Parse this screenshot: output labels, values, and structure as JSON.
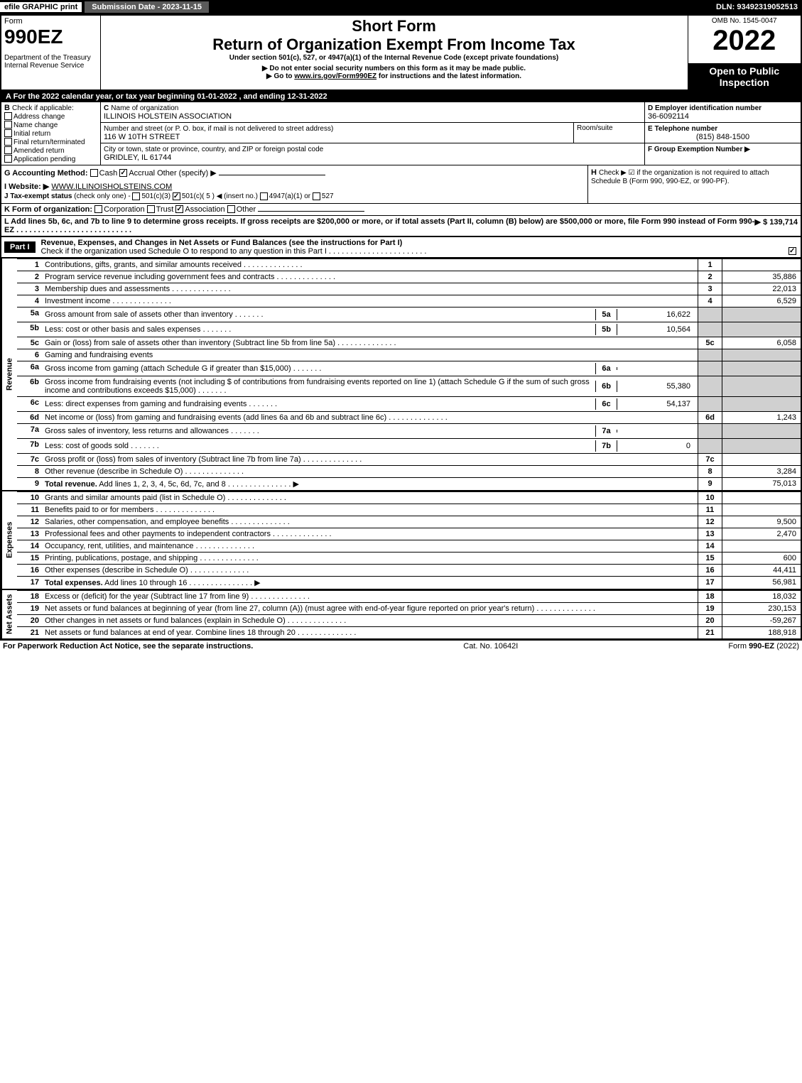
{
  "topbar": {
    "efile": "efile GRAPHIC print",
    "submission": "Submission Date - 2023-11-15",
    "dln": "DLN: 93492319052513"
  },
  "header": {
    "form_label": "Form",
    "form_number": "990EZ",
    "dept1": "Department of the Treasury",
    "dept2": "Internal Revenue Service",
    "short_form": "Short Form",
    "title": "Return of Organization Exempt From Income Tax",
    "subtitle": "Under section 501(c), 527, or 4947(a)(1) of the Internal Revenue Code (except private foundations)",
    "note1": "▶ Do not enter social security numbers on this form as it may be made public.",
    "note2": "▶ Go to www.irs.gov/Form990EZ for instructions and the latest information.",
    "omb": "OMB No. 1545-0047",
    "year": "2022",
    "open_to": "Open to Public Inspection"
  },
  "sectionA": {
    "label": "A  For the 2022 calendar year, or tax year beginning 01-01-2022 , and ending 12-31-2022"
  },
  "sectionB": {
    "label": "B",
    "check_if": "Check if applicable:",
    "options": [
      "Address change",
      "Name change",
      "Initial return",
      "Final return/terminated",
      "Amended return",
      "Application pending"
    ]
  },
  "sectionC": {
    "label": "C",
    "name_label": "Name of organization",
    "name": "ILLINOIS HOLSTEIN ASSOCIATION",
    "addr_label": "Number and street (or P. O. box, if mail is not delivered to street address)",
    "addr": "116 W 10TH STREET",
    "room": "Room/suite",
    "city_label": "City or town, state or province, country, and ZIP or foreign postal code",
    "city": "GRIDLEY, IL  61744"
  },
  "sectionD": {
    "label": "D Employer identification number",
    "ein": "36-6092114"
  },
  "sectionE": {
    "label": "E Telephone number",
    "phone": "(815) 848-1500"
  },
  "sectionF": {
    "label": "F Group Exemption Number  ▶"
  },
  "sectionG": {
    "label": "G Accounting Method:",
    "cash": "Cash",
    "accrual": "Accrual",
    "other": "Other (specify) ▶"
  },
  "sectionH": {
    "label": "H",
    "text": "Check ▶ ☑ if the organization is not required to attach Schedule B (Form 990, 990-EZ, or 990-PF)."
  },
  "sectionI": {
    "label": "I Website: ▶",
    "website": "WWW.ILLINOISHOLSTEINS.COM"
  },
  "sectionJ": {
    "label": "J Tax-exempt status",
    "note": "(check only one) -",
    "opt1": "501(c)(3)",
    "opt2": "501(c)( 5 ) ◀ (insert no.)",
    "opt3": "4947(a)(1) or",
    "opt4": "527"
  },
  "sectionK": {
    "label": "K Form of organization:",
    "corp": "Corporation",
    "trust": "Trust",
    "assoc": "Association",
    "other": "Other"
  },
  "sectionL": {
    "text": "L Add lines 5b, 6c, and 7b to line 9 to determine gross receipts. If gross receipts are $200,000 or more, or if total assets (Part II, column (B) below) are $500,000 or more, file Form 990 instead of Form 990-EZ",
    "value": "▶ $ 139,714"
  },
  "part1": {
    "label": "Part I",
    "title": "Revenue, Expenses, and Changes in Net Assets or Fund Balances (see the instructions for Part I)",
    "check": "Check if the organization used Schedule O to respond to any question in this Part I"
  },
  "revenue": {
    "section_label": "Revenue",
    "lines": {
      "1": {
        "desc": "Contributions, gifts, grants, and similar amounts received",
        "num": "1",
        "val": ""
      },
      "2": {
        "desc": "Program service revenue including government fees and contracts",
        "num": "2",
        "val": "35,886"
      },
      "3": {
        "desc": "Membership dues and assessments",
        "num": "3",
        "val": "22,013"
      },
      "4": {
        "desc": "Investment income",
        "num": "4",
        "val": "6,529"
      },
      "5a": {
        "desc": "Gross amount from sale of assets other than inventory",
        "sub": "5a",
        "subval": "16,622"
      },
      "5b": {
        "desc": "Less: cost or other basis and sales expenses",
        "sub": "5b",
        "subval": "10,564"
      },
      "5c": {
        "desc": "Gain or (loss) from sale of assets other than inventory (Subtract line 5b from line 5a)",
        "num": "5c",
        "val": "6,058"
      },
      "6": {
        "desc": "Gaming and fundraising events"
      },
      "6a": {
        "desc": "Gross income from gaming (attach Schedule G if greater than $15,000)",
        "sub": "6a",
        "subval": ""
      },
      "6b": {
        "desc": "Gross income from fundraising events (not including $                of contributions from fundraising events reported on line 1) (attach Schedule G if the sum of such gross income and contributions exceeds $15,000)",
        "sub": "6b",
        "subval": "55,380"
      },
      "6c": {
        "desc": "Less: direct expenses from gaming and fundraising events",
        "sub": "6c",
        "subval": "54,137"
      },
      "6d": {
        "desc": "Net income or (loss) from gaming and fundraising events (add lines 6a and 6b and subtract line 6c)",
        "num": "6d",
        "val": "1,243"
      },
      "7a": {
        "desc": "Gross sales of inventory, less returns and allowances",
        "sub": "7a",
        "subval": ""
      },
      "7b": {
        "desc": "Less: cost of goods sold",
        "sub": "7b",
        "subval": "0"
      },
      "7c": {
        "desc": "Gross profit or (loss) from sales of inventory (Subtract line 7b from line 7a)",
        "num": "7c",
        "val": ""
      },
      "8": {
        "desc": "Other revenue (describe in Schedule O)",
        "num": "8",
        "val": "3,284"
      },
      "9": {
        "desc": "Total revenue. Add lines 1, 2, 3, 4, 5c, 6d, 7c, and 8",
        "num": "9",
        "val": "75,013",
        "arrow": "▶"
      }
    }
  },
  "expenses": {
    "section_label": "Expenses",
    "lines": {
      "10": {
        "desc": "Grants and similar amounts paid (list in Schedule O)",
        "num": "10",
        "val": ""
      },
      "11": {
        "desc": "Benefits paid to or for members",
        "num": "11",
        "val": ""
      },
      "12": {
        "desc": "Salaries, other compensation, and employee benefits",
        "num": "12",
        "val": "9,500"
      },
      "13": {
        "desc": "Professional fees and other payments to independent contractors",
        "num": "13",
        "val": "2,470"
      },
      "14": {
        "desc": "Occupancy, rent, utilities, and maintenance",
        "num": "14",
        "val": ""
      },
      "15": {
        "desc": "Printing, publications, postage, and shipping",
        "num": "15",
        "val": "600"
      },
      "16": {
        "desc": "Other expenses (describe in Schedule O)",
        "num": "16",
        "val": "44,411"
      },
      "17": {
        "desc": "Total expenses. Add lines 10 through 16",
        "num": "17",
        "val": "56,981",
        "arrow": "▶"
      }
    }
  },
  "netassets": {
    "section_label": "Net Assets",
    "lines": {
      "18": {
        "desc": "Excess or (deficit) for the year (Subtract line 17 from line 9)",
        "num": "18",
        "val": "18,032"
      },
      "19": {
        "desc": "Net assets or fund balances at beginning of year (from line 27, column (A)) (must agree with end-of-year figure reported on prior year's return)",
        "num": "19",
        "val": "230,153"
      },
      "20": {
        "desc": "Other changes in net assets or fund balances (explain in Schedule O)",
        "num": "20",
        "val": "-59,267"
      },
      "21": {
        "desc": "Net assets or fund balances at end of year. Combine lines 18 through 20",
        "num": "21",
        "val": "188,918"
      }
    }
  },
  "footer": {
    "left": "For Paperwork Reduction Act Notice, see the separate instructions.",
    "mid": "Cat. No. 10642I",
    "right": "Form 990-EZ (2022)"
  }
}
